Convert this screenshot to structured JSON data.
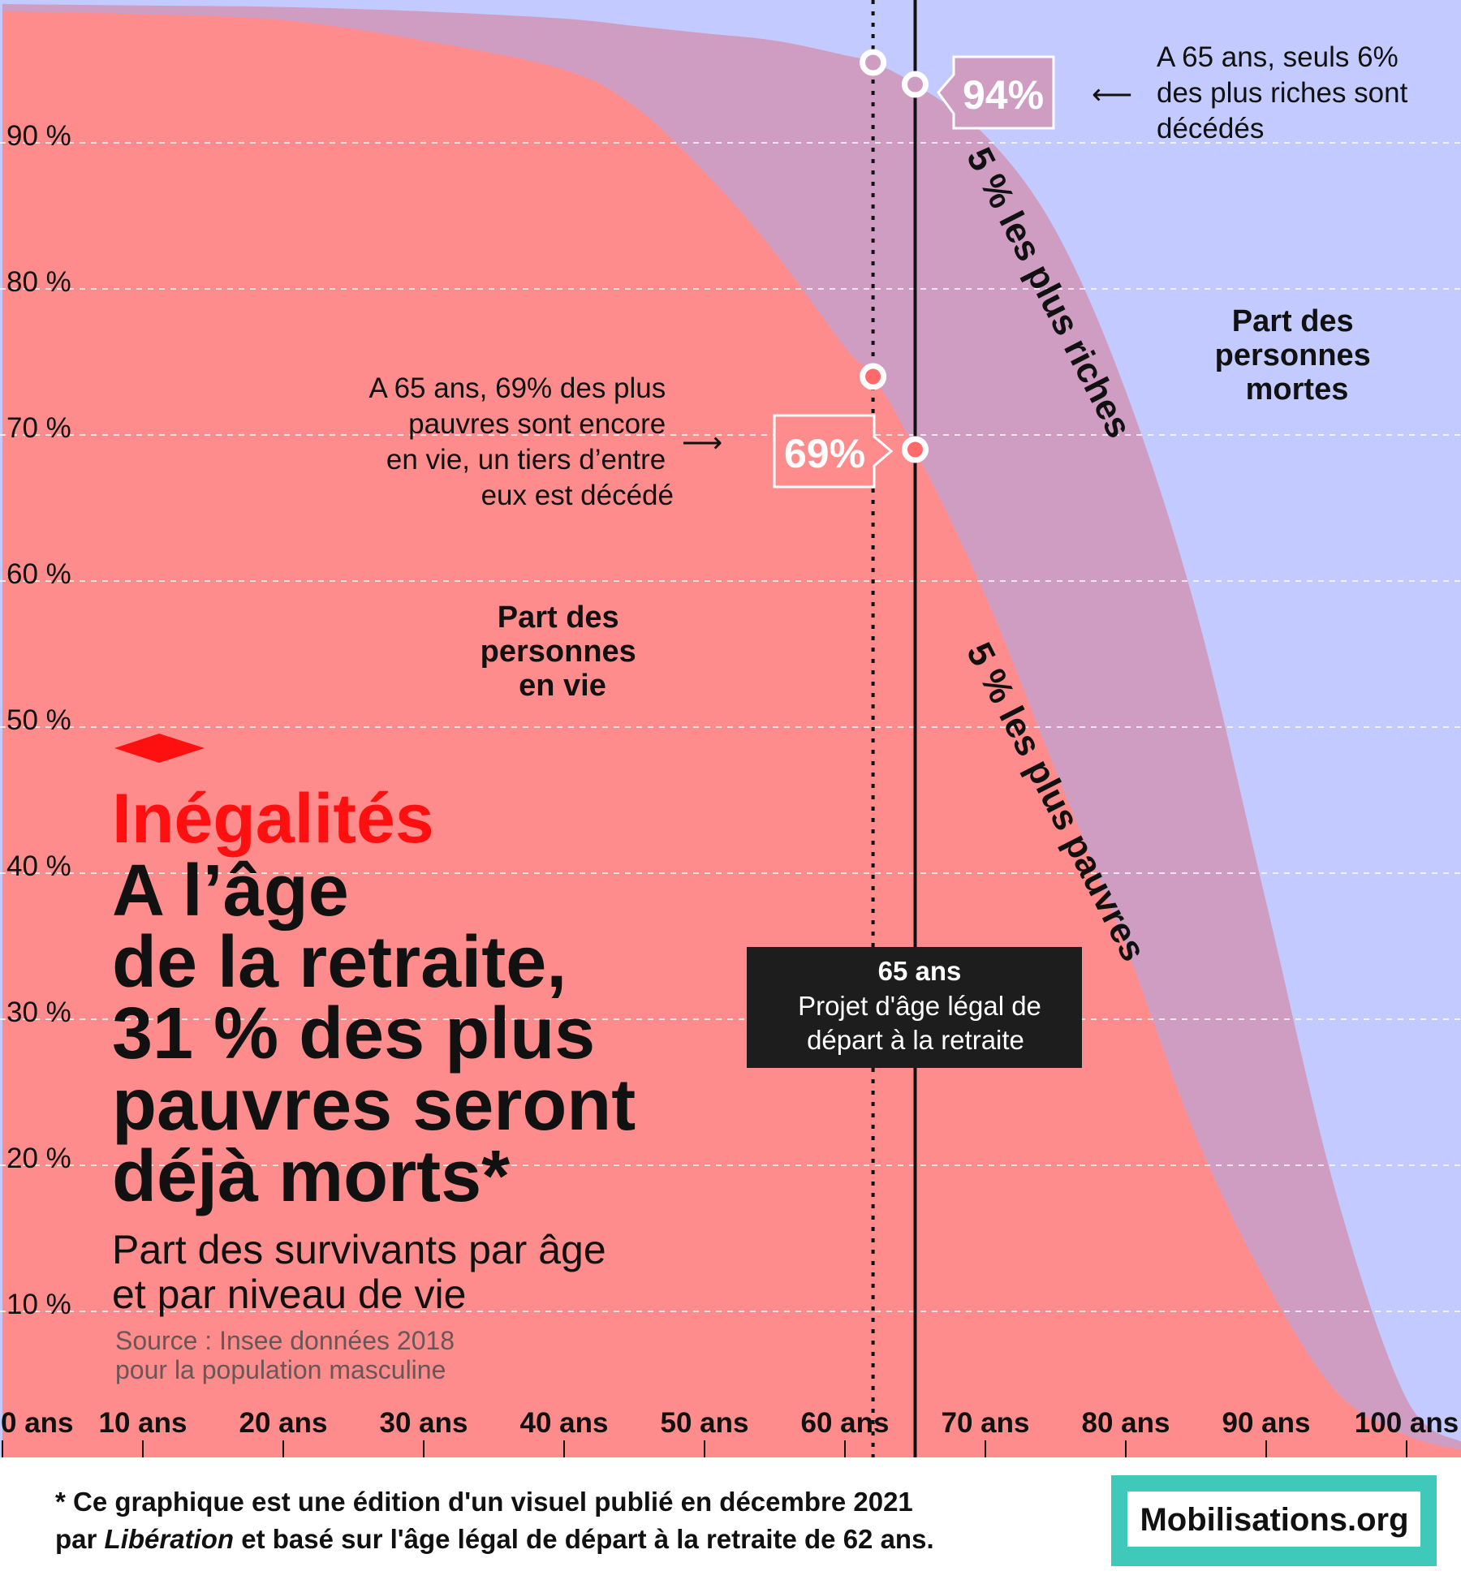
{
  "chart_data": {
    "type": "area",
    "xlim": [
      0,
      104
    ],
    "ylim": [
      0,
      100
    ],
    "y_ticks": [
      "10 %",
      "20 %",
      "30 %",
      "40 %",
      "50 %",
      "60 %",
      "70 %",
      "80 %",
      "90 %"
    ],
    "y_tick_values": [
      10,
      20,
      30,
      40,
      50,
      60,
      70,
      80,
      90
    ],
    "x_ticks": [
      "0 ans",
      "10 ans",
      "20 ans",
      "30 ans",
      "40 ans",
      "50 ans",
      "60 ans",
      "70 ans",
      "80 ans",
      "90 ans",
      "100 ans"
    ],
    "x_tick_values": [
      0,
      10,
      20,
      30,
      40,
      50,
      60,
      70,
      80,
      90,
      100
    ],
    "x": [
      0,
      10,
      20,
      30,
      40,
      45,
      50,
      55,
      60,
      62,
      65,
      70,
      75,
      80,
      85,
      90,
      95,
      100,
      104
    ],
    "series": [
      {
        "name": "5 % les plus riches",
        "color": "#d09dc2",
        "values": [
          99.5,
          99.4,
          99.3,
          99,
          98.5,
          98,
          97.5,
          97,
          96,
          95.5,
          94,
          90.5,
          84,
          73,
          58,
          38,
          18,
          4,
          1
        ]
      },
      {
        "name": "5 % les plus pauvres",
        "color": "#ff8c8c",
        "values": [
          99,
          98.8,
          98.4,
          97,
          95,
          92.5,
          88,
          82.5,
          76,
          74,
          69,
          59,
          47,
          35,
          22,
          12,
          4.5,
          1.5,
          0.5
        ]
      }
    ],
    "dead_region_color": "#c3caff",
    "markers": [
      {
        "age": 62,
        "value": 95.5,
        "color": "#d09dc2"
      },
      {
        "age": 65,
        "value": 94,
        "color": "#d09dc2"
      },
      {
        "age": 62,
        "value": 74,
        "color": "#ff6b6b"
      },
      {
        "age": 65,
        "value": 69,
        "color": "#ff6b6b"
      }
    ],
    "reference_lines": [
      {
        "age": 62,
        "style": "dotted"
      },
      {
        "age": 65,
        "style": "solid"
      }
    ],
    "grid": true,
    "legend": "none"
  },
  "labels": {
    "rich_pct": "94%",
    "poor_pct": "69%",
    "rich_curve": "5 % les plus riches",
    "poor_curve": "5 % les plus pauvres",
    "dead_region": [
      "Part des",
      "personnes",
      "mortes"
    ],
    "alive_region": [
      "Part des",
      "personnes",
      "en vie"
    ],
    "rich_note": [
      "A 65 ans, seuls 6%",
      "des plus riches sont",
      "décédés"
    ],
    "poor_note": [
      "A 65 ans, 69% des plus",
      "pauvres sont encore",
      "en vie, un tiers d’entre",
      "eux est décédé"
    ],
    "arrow_left": "⟵",
    "arrow_right": "⟶"
  },
  "infobox": {
    "line1": "65 ans",
    "line2": "Projet d'âge légal de",
    "line3": "départ à la retraite"
  },
  "headline": {
    "kicker": "Inégalités",
    "lines": [
      "A l’âge",
      "de la retraite,",
      "31 % des plus",
      "pauvres seront",
      "déjà morts*"
    ],
    "subtitle": [
      "Part des survivants par âge",
      "et par niveau de vie"
    ],
    "source": [
      "Source : Insee données 2018",
      "pour la population masculine"
    ]
  },
  "footer": {
    "note_line1": "* Ce graphique est une édition d'un visuel publié en décembre 2021",
    "note_line2_before": "par ",
    "note_line2_italic": "Libération",
    "note_line2_after": " et basé sur l'âge légal de départ à la retraite de 62 ans.",
    "brand": "Mobilisations.org",
    "brand_color": "#3ec9bb"
  }
}
